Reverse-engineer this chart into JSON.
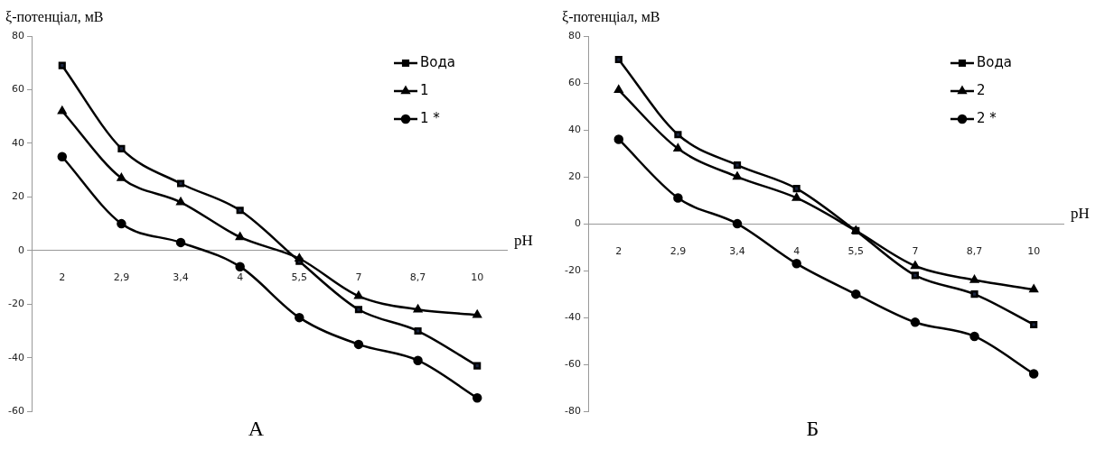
{
  "chart_data": [
    {
      "type": "line",
      "title": "А",
      "xlabel": "pH",
      "ylabel": "ξ-потенціал, мВ",
      "categories": [
        "2",
        "2,9",
        "3,4",
        "4",
        "5,5",
        "7",
        "8,7",
        "10"
      ],
      "ylim": [
        -60,
        80
      ],
      "yticks": [
        -60,
        -40,
        -20,
        0,
        20,
        40,
        60,
        80
      ],
      "grid": false,
      "legend": "top right",
      "line_style": "solid",
      "series": [
        {
          "name": "Вода",
          "color": "#000000",
          "marker": "square",
          "values": [
            69,
            38,
            25,
            15,
            -4,
            -22,
            -30,
            -43
          ]
        },
        {
          "name": "1",
          "color": "#000000",
          "marker": "triangle",
          "values": [
            52,
            27,
            18,
            5,
            -3,
            -17,
            -22,
            -24
          ]
        },
        {
          "name": "1 *",
          "color": "#000000",
          "marker": "circle",
          "values": [
            35,
            10,
            3,
            -6,
            -25,
            -35,
            -41,
            -55
          ]
        }
      ]
    },
    {
      "type": "line",
      "title": "Б",
      "xlabel": "pH",
      "ylabel": "ξ-потенціал, мВ",
      "categories": [
        "2",
        "2,9",
        "3,4",
        "4",
        "5,5",
        "7",
        "8,7",
        "10"
      ],
      "ylim": [
        -80,
        80
      ],
      "yticks": [
        -80,
        -60,
        -40,
        -20,
        0,
        20,
        40,
        60,
        80
      ],
      "grid": false,
      "legend": "top right",
      "line_style": "solid",
      "series": [
        {
          "name": "Вода",
          "color": "#000000",
          "marker": "square",
          "values": [
            70,
            38,
            25,
            15,
            -3,
            -22,
            -30,
            -43
          ]
        },
        {
          "name": "2",
          "color": "#000000",
          "marker": "triangle",
          "values": [
            57,
            32,
            20,
            11,
            -3,
            -18,
            -24,
            -28
          ]
        },
        {
          "name": "2 *",
          "color": "#000000",
          "marker": "circle",
          "values": [
            36,
            11,
            0,
            -17,
            -30,
            -42,
            -48,
            -64
          ]
        }
      ]
    }
  ]
}
